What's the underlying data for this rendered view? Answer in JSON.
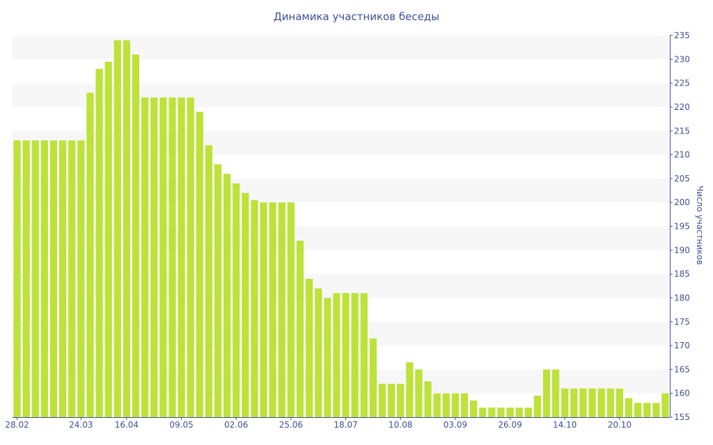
{
  "chart_data": {
    "type": "bar",
    "title": "Динамика участников беседы",
    "xlabel": "",
    "ylabel": "Число участников",
    "ylim": [
      155,
      235
    ],
    "yticks": [
      155,
      160,
      165,
      170,
      175,
      180,
      185,
      190,
      195,
      200,
      205,
      210,
      215,
      220,
      225,
      230,
      235
    ],
    "x_tick_labels": [
      "28.02",
      "24.03",
      "16.04",
      "09.05",
      "02.06",
      "25.06",
      "18.07",
      "10.08",
      "03.09",
      "26.09",
      "14.10",
      "20.10"
    ],
    "x_tick_bar_index": [
      0,
      7,
      12,
      18,
      24,
      30,
      36,
      42,
      48,
      54,
      60,
      66
    ],
    "y_axis_position": "right",
    "grid": "horizontal-bands",
    "color": "#bde23a",
    "values": [
      213,
      213,
      213,
      213,
      213,
      213,
      213,
      213,
      223,
      228,
      229.5,
      234,
      234,
      231,
      222,
      222,
      222,
      222,
      222,
      222,
      219,
      212,
      208,
      206,
      204,
      202,
      200.5,
      200,
      200,
      200,
      200,
      192,
      184,
      182,
      180,
      181,
      181,
      181,
      181,
      171.5,
      162,
      162,
      162,
      166.5,
      165,
      162.5,
      160,
      160,
      160,
      160,
      158.5,
      157,
      157,
      157,
      157,
      157,
      157,
      159.5,
      165,
      165,
      161,
      161,
      161,
      161,
      161,
      161,
      161,
      159,
      158,
      158,
      158,
      160
    ]
  }
}
